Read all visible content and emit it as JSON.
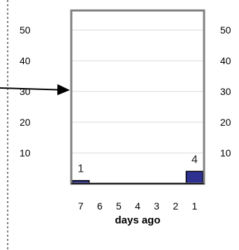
{
  "chart_data": {
    "type": "bar",
    "categories": [
      "7",
      "6",
      "5",
      "4",
      "3",
      "2",
      "1"
    ],
    "values": [
      1,
      0,
      0,
      0,
      0,
      0,
      4
    ],
    "data_labels": [
      "1",
      "",
      "",
      "",
      "",
      "",
      "4"
    ],
    "xlabel": "days ago",
    "ylim": [
      0,
      55
    ],
    "left_axis_ticks": [
      "10",
      "20",
      "30",
      "40",
      "50"
    ],
    "right_axis_ticks": [
      "10",
      "20",
      "30",
      "40",
      "50"
    ],
    "grid": true,
    "bar_color": "#2E3192",
    "frame_color": "#808080"
  }
}
